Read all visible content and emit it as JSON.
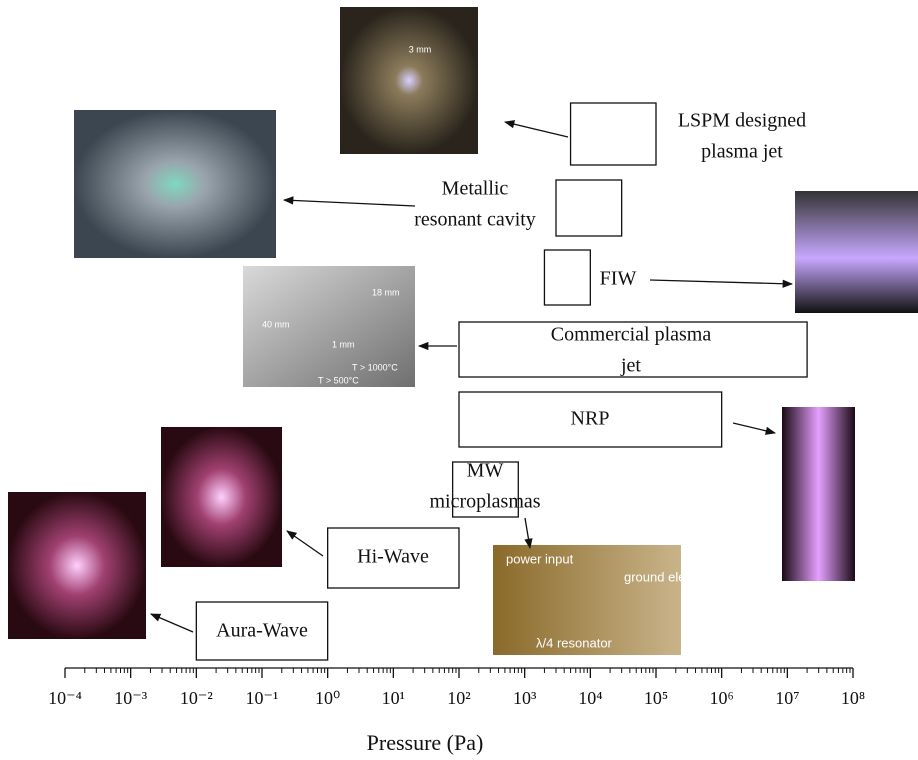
{
  "chart_data": {
    "type": "range",
    "xlabel": "Pressure (Pa)",
    "log_x": true,
    "xlim": [
      0.0001,
      100000000
    ],
    "xticks": [
      {
        "value": 0.0001,
        "label": "10⁻⁴"
      },
      {
        "value": 0.001,
        "label": "10⁻³"
      },
      {
        "value": 0.01,
        "label": "10⁻²"
      },
      {
        "value": 0.1,
        "label": "10⁻¹"
      },
      {
        "value": 1,
        "label": "10⁰"
      },
      {
        "value": 10,
        "label": "10¹"
      },
      {
        "value": 100,
        "label": "10²"
      },
      {
        "value": 1000,
        "label": "10³"
      },
      {
        "value": 10000,
        "label": "10⁴"
      },
      {
        "value": 100000,
        "label": "10⁵"
      },
      {
        "value": 1000000,
        "label": "10⁶"
      },
      {
        "value": 10000000,
        "label": "10⁷"
      },
      {
        "value": 100000000,
        "label": "10⁸"
      }
    ],
    "ranges": [
      {
        "label_lines": [
          "LSPM designed",
          "plasma jet"
        ],
        "low": 5000,
        "high": 100000
      },
      {
        "label_lines": [
          "Metallic",
          "resonant cavity"
        ],
        "low": 3000,
        "high": 30000
      },
      {
        "label_lines": [
          "FIW"
        ],
        "low": 2000,
        "high": 10000
      },
      {
        "label_lines": [
          "Commercial plasma",
          "jet"
        ],
        "low": 100,
        "high": 20000000
      },
      {
        "label_lines": [
          "NRP"
        ],
        "low": 100,
        "high": 1000000
      },
      {
        "label_lines": [
          "MW",
          "microplasmas"
        ],
        "low": 80,
        "high": 800
      },
      {
        "label_lines": [
          "Hi-Wave"
        ],
        "low": 1,
        "high": 100
      },
      {
        "label_lines": [
          "Aura-Wave"
        ],
        "low": 0.01,
        "high": 1
      }
    ],
    "photo_labels": [
      "3 mm",
      "40 mm",
      "1 mm",
      "18 mm",
      "T > 1000°C",
      "T > 500°C",
      "power input",
      "ground electrode",
      "λ/4 resonator"
    ]
  }
}
